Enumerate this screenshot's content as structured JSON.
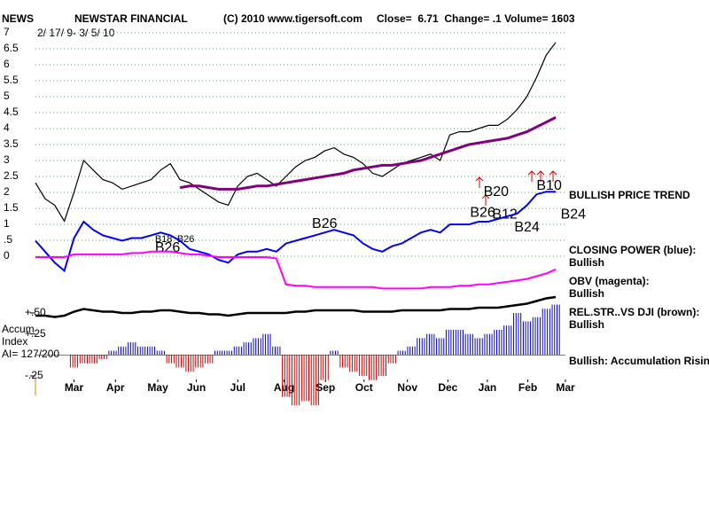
{
  "header": {
    "symbol": "NEWS",
    "name": "NEWSTAR FINANCIAL",
    "source": "(C) 2010 www.tigersoft.com",
    "quote": "Close=  6.71  Change= .1 Volume= 1603",
    "range": "2/ 17/ 9- 3/ 5/ 10"
  },
  "side_labels": [
    "BULLISH PRICE TREND",
    "CLOSING POWER (blue):",
    "Bullish",
    "OBV (magenta):",
    "Bullish",
    "REL.STR..VS DJI (brown):",
    "Bullish",
    "Bullish: Accumulation Rising"
  ],
  "accum_labels": [
    "Accum",
    "Index",
    "AI= 127/200"
  ],
  "chart_data": [
    {
      "type": "line",
      "xlim": [
        0,
        55
      ],
      "xticks": [
        {
          "value": 4,
          "label": "Mar"
        },
        {
          "value": 8.3,
          "label": "Apr"
        },
        {
          "value": 12.7,
          "label": "May"
        },
        {
          "value": 16.7,
          "label": "Jun"
        },
        {
          "value": 21,
          "label": "Jul"
        },
        {
          "value": 25.8,
          "label": "Aug"
        },
        {
          "value": 30.1,
          "label": "Sep"
        },
        {
          "value": 34.1,
          "label": "Oct"
        },
        {
          "value": 38.6,
          "label": "Nov"
        },
        {
          "value": 42.8,
          "label": "Dec"
        },
        {
          "value": 46.9,
          "label": "Jan"
        },
        {
          "value": 51.1,
          "label": "Feb"
        },
        {
          "value": 55,
          "label": "Mar"
        }
      ],
      "ylim": [
        0,
        7
      ],
      "yticks": [
        7,
        6.5,
        6,
        5.5,
        5,
        4.5,
        4,
        3.5,
        3,
        2.5,
        2,
        1.5,
        1,
        {
          "value": 0.5,
          "label": ".5"
        },
        0
      ],
      "grid": true,
      "series": [
        {
          "color": "#000000",
          "width": 1.2,
          "values": [
            2.3,
            1.8,
            1.6,
            1.1,
            2.0,
            3.0,
            2.7,
            2.4,
            2.3,
            2.1,
            2.2,
            2.3,
            2.4,
            2.7,
            2.9,
            2.4,
            2.3,
            2.1,
            1.9,
            1.7,
            1.6,
            2.2,
            2.5,
            2.6,
            2.4,
            2.2,
            2.5,
            2.8,
            3.0,
            3.1,
            3.3,
            3.4,
            3.2,
            3.1,
            2.9,
            2.6,
            2.5,
            2.7,
            2.9,
            3.0,
            3.1,
            3.2,
            3.0,
            3.8,
            3.9,
            3.9,
            4.0,
            4.1,
            4.1,
            4.3,
            4.6,
            5.0,
            5.6,
            6.3,
            6.7
          ]
        },
        {
          "color": "#800080",
          "width": 3,
          "values": [
            null,
            null,
            null,
            null,
            null,
            null,
            null,
            null,
            null,
            null,
            null,
            null,
            null,
            null,
            null,
            2.15,
            2.2,
            2.2,
            2.15,
            2.1,
            2.1,
            2.1,
            2.15,
            2.2,
            2.2,
            2.25,
            2.3,
            2.35,
            2.4,
            2.45,
            2.5,
            2.55,
            2.6,
            2.7,
            2.75,
            2.8,
            2.85,
            2.85,
            2.9,
            2.95,
            3.0,
            3.1,
            3.2,
            3.3,
            3.4,
            3.5,
            3.55,
            3.6,
            3.65,
            3.7,
            3.8,
            3.9,
            4.05,
            4.2,
            4.35
          ]
        }
      ],
      "annotations": [
        {
          "text": "B18",
          "x": 12.4,
          "y": 0.53
        },
        {
          "text": "B26",
          "x": 14.7,
          "y": 0.53
        },
        {
          "text": "B26",
          "x": 12.4,
          "y": 0.25
        },
        {
          "text": "B26",
          "x": 28.7,
          "y": 1.0
        },
        {
          "text": "B20",
          "x": 46.5,
          "y": 2.0
        },
        {
          "text": "B26",
          "x": 45.1,
          "y": 1.35
        },
        {
          "text": "B12",
          "x": 47.4,
          "y": 1.3
        },
        {
          "text": "B24",
          "x": 49.7,
          "y": 0.9
        },
        {
          "text": "B10",
          "x": 52,
          "y": 2.2
        },
        {
          "text": "B24",
          "x": 54.5,
          "y": 1.3
        }
      ]
    },
    {
      "type": "line",
      "xlim": [
        0,
        55
      ],
      "ylim": [
        -1.7,
        2.2
      ],
      "series": [
        {
          "color": "#0000ff",
          "width": 2,
          "values": [
            0.2,
            -0.2,
            -0.6,
            -0.9,
            0.3,
            0.9,
            0.6,
            0.4,
            0.3,
            0.2,
            0.3,
            0.3,
            0.4,
            0.5,
            0.4,
            0.2,
            -0.1,
            -0.2,
            -0.3,
            -0.5,
            -0.6,
            -0.3,
            -0.2,
            -0.2,
            -0.1,
            -0.2,
            0.1,
            0.2,
            0.3,
            0.4,
            0.5,
            0.6,
            0.5,
            0.4,
            0.1,
            -0.1,
            -0.2,
            0.0,
            0.1,
            0.3,
            0.5,
            0.6,
            0.5,
            0.8,
            0.8,
            0.8,
            0.9,
            0.9,
            1.0,
            1.1,
            1.2,
            1.5,
            1.9,
            2.0,
            2.0
          ]
        },
        {
          "color": "#ff00ff",
          "width": 2,
          "values": [
            -0.4,
            -0.4,
            -0.4,
            -0.4,
            -0.3,
            -0.3,
            -0.3,
            -0.3,
            -0.3,
            -0.3,
            -0.25,
            -0.25,
            -0.2,
            -0.2,
            -0.2,
            -0.25,
            -0.3,
            -0.3,
            -0.35,
            -0.4,
            -0.4,
            -0.4,
            -0.4,
            -0.4,
            -0.4,
            -0.45,
            -1.4,
            -1.45,
            -1.45,
            -1.5,
            -1.5,
            -1.5,
            -1.5,
            -1.5,
            -1.5,
            -1.5,
            -1.55,
            -1.55,
            -1.55,
            -1.55,
            -1.55,
            -1.5,
            -1.5,
            -1.5,
            -1.45,
            -1.45,
            -1.4,
            -1.4,
            -1.35,
            -1.3,
            -1.25,
            -1.2,
            -1.1,
            -1.0,
            -0.85
          ]
        }
      ]
    },
    {
      "type": "line",
      "xlim": [
        0,
        55
      ],
      "ylim": [
        0,
        1
      ],
      "series": [
        {
          "color": "#000000",
          "width": 2.5,
          "values": [
            0.3,
            0.3,
            0.25,
            0.3,
            0.45,
            0.55,
            0.5,
            0.45,
            0.45,
            0.4,
            0.4,
            0.45,
            0.45,
            0.5,
            0.5,
            0.45,
            0.4,
            0.4,
            0.35,
            0.35,
            0.3,
            0.35,
            0.4,
            0.4,
            0.4,
            0.4,
            0.4,
            0.45,
            0.45,
            0.5,
            0.5,
            0.5,
            0.5,
            0.5,
            0.45,
            0.45,
            0.45,
            0.45,
            0.5,
            0.5,
            0.5,
            0.5,
            0.5,
            0.55,
            0.55,
            0.55,
            0.6,
            0.6,
            0.6,
            0.65,
            0.7,
            0.75,
            0.85,
            0.95,
            1.0
          ]
        }
      ]
    },
    {
      "type": "bar",
      "xlim": [
        0,
        55
      ],
      "ylim": [
        -0.7,
        0.6
      ],
      "yticks": [
        {
          "value": 0.5,
          "label": "+.50"
        },
        {
          "value": 0.25,
          "label": "+.25"
        },
        {
          "value": -0.25,
          "label": "-.25"
        }
      ],
      "color_up": "#0000cc",
      "color_down": "#cc0000",
      "values": [
        null,
        null,
        null,
        null,
        -0.15,
        -0.1,
        -0.1,
        -0.05,
        0.05,
        0.1,
        0.15,
        0.1,
        0.1,
        0.05,
        -0.1,
        -0.15,
        -0.2,
        -0.15,
        -0.1,
        0.05,
        0.05,
        0.1,
        0.15,
        0.2,
        0.25,
        0.1,
        -0.5,
        -0.6,
        -0.55,
        -0.6,
        -0.3,
        0.05,
        -0.15,
        -0.2,
        -0.25,
        -0.3,
        -0.25,
        -0.1,
        0.05,
        0.1,
        0.2,
        0.25,
        0.2,
        0.3,
        0.3,
        0.25,
        0.2,
        0.25,
        0.3,
        0.35,
        0.5,
        0.4,
        0.45,
        0.55,
        0.6
      ]
    }
  ]
}
